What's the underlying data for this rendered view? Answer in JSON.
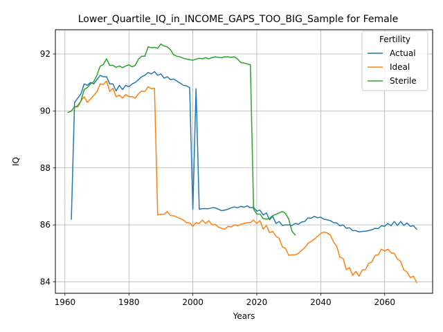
{
  "chart_data": {
    "type": "line",
    "title": "Lower_Quartile_IQ_in_INCOME_GAPS_TOO_BIG_Sample for Female",
    "xlabel": "Years",
    "ylabel": "IQ",
    "xlim": [
      1957,
      2075
    ],
    "ylim": [
      83.6,
      92.85
    ],
    "xticks": [
      1960,
      1980,
      2000,
      2020,
      2040,
      2060
    ],
    "yticks": [
      84,
      86,
      88,
      90,
      92
    ],
    "grid": true,
    "legend": {
      "title": "Fertility",
      "placement": "top-right"
    },
    "series": [
      {
        "name": "Actual",
        "color": "#1f77b4",
        "points": [
          [
            1962,
            86.2
          ],
          [
            1963,
            90.3
          ],
          [
            1964,
            90.45
          ],
          [
            1965,
            90.6
          ],
          [
            1966,
            90.95
          ],
          [
            1967,
            90.9
          ],
          [
            1968,
            91.0
          ],
          [
            1969,
            90.95
          ],
          [
            1970,
            91.1
          ],
          [
            1971,
            91.25
          ],
          [
            1972,
            91.2
          ],
          [
            1973,
            91.2
          ],
          [
            1974,
            90.95
          ],
          [
            1975,
            90.95
          ],
          [
            1976,
            90.7
          ],
          [
            1977,
            90.9
          ],
          [
            1978,
            90.75
          ],
          [
            1979,
            90.9
          ],
          [
            1980,
            90.85
          ],
          [
            1981,
            90.95
          ],
          [
            1982,
            91.0
          ],
          [
            1983,
            91.1
          ],
          [
            1984,
            91.2
          ],
          [
            1985,
            91.25
          ],
          [
            1986,
            91.35
          ],
          [
            1987,
            91.3
          ],
          [
            1988,
            91.38
          ],
          [
            1989,
            91.25
          ],
          [
            1990,
            91.3
          ],
          [
            1991,
            91.15
          ],
          [
            1992,
            91.2
          ],
          [
            1993,
            91.1
          ],
          [
            1994,
            91.12
          ],
          [
            1995,
            91.05
          ],
          [
            1996,
            90.98
          ],
          [
            1997,
            90.9
          ],
          [
            1998,
            90.88
          ],
          [
            1999,
            90.82
          ],
          [
            2000,
            86.55
          ],
          [
            2001,
            90.78
          ],
          [
            2002,
            86.55
          ],
          [
            2003,
            86.57
          ],
          [
            2004,
            86.57
          ],
          [
            2005,
            86.57
          ],
          [
            2006,
            86.6
          ],
          [
            2007,
            86.6
          ],
          [
            2008,
            86.55
          ],
          [
            2009,
            86.5
          ],
          [
            2010,
            86.52
          ],
          [
            2011,
            86.55
          ],
          [
            2012,
            86.6
          ],
          [
            2013,
            86.63
          ],
          [
            2014,
            86.6
          ],
          [
            2015,
            86.65
          ],
          [
            2016,
            86.62
          ],
          [
            2017,
            86.67
          ],
          [
            2018,
            86.6
          ],
          [
            2019,
            86.62
          ],
          [
            2020,
            86.48
          ],
          [
            2021,
            86.52
          ],
          [
            2022,
            86.35
          ],
          [
            2023,
            86.42
          ],
          [
            2024,
            86.18
          ],
          [
            2025,
            86.3
          ],
          [
            2026,
            86.05
          ],
          [
            2027,
            86.12
          ],
          [
            2028,
            85.98
          ],
          [
            2029,
            86.0
          ],
          [
            2030,
            86.0
          ],
          [
            2031,
            85.98
          ],
          [
            2032,
            86.05
          ],
          [
            2033,
            86.02
          ],
          [
            2034,
            86.1
          ],
          [
            2035,
            86.12
          ],
          [
            2036,
            86.25
          ],
          [
            2037,
            86.23
          ],
          [
            2038,
            86.3
          ],
          [
            2039,
            86.25
          ],
          [
            2040,
            86.27
          ],
          [
            2041,
            86.2
          ],
          [
            2042,
            86.18
          ],
          [
            2043,
            86.15
          ],
          [
            2044,
            86.08
          ],
          [
            2045,
            86.07
          ],
          [
            2046,
            85.97
          ],
          [
            2047,
            86.0
          ],
          [
            2048,
            85.88
          ],
          [
            2049,
            85.9
          ],
          [
            2050,
            85.8
          ],
          [
            2051,
            85.8
          ],
          [
            2052,
            85.75
          ],
          [
            2053,
            85.77
          ],
          [
            2054,
            85.78
          ],
          [
            2055,
            85.8
          ],
          [
            2056,
            85.83
          ],
          [
            2057,
            85.88
          ],
          [
            2058,
            85.87
          ],
          [
            2059,
            85.97
          ],
          [
            2060,
            85.95
          ],
          [
            2061,
            86.05
          ],
          [
            2062,
            85.97
          ],
          [
            2063,
            86.12
          ],
          [
            2064,
            85.98
          ],
          [
            2065,
            86.12
          ],
          [
            2066,
            85.98
          ],
          [
            2067,
            86.07
          ],
          [
            2068,
            85.95
          ],
          [
            2069,
            85.97
          ],
          [
            2070,
            85.85
          ]
        ]
      },
      {
        "name": "Ideal",
        "color": "#ff7f0e",
        "points": [
          [
            1963,
            90.1
          ],
          [
            1964,
            90.2
          ],
          [
            1965,
            90.35
          ],
          [
            1966,
            90.5
          ],
          [
            1967,
            90.3
          ],
          [
            1968,
            90.42
          ],
          [
            1969,
            90.55
          ],
          [
            1970,
            90.67
          ],
          [
            1971,
            90.95
          ],
          [
            1972,
            90.93
          ],
          [
            1973,
            91.05
          ],
          [
            1974,
            90.68
          ],
          [
            1975,
            90.8
          ],
          [
            1976,
            90.5
          ],
          [
            1977,
            90.55
          ],
          [
            1978,
            90.45
          ],
          [
            1979,
            90.57
          ],
          [
            1980,
            90.5
          ],
          [
            1981,
            90.5
          ],
          [
            1982,
            90.45
          ],
          [
            1983,
            90.6
          ],
          [
            1984,
            90.7
          ],
          [
            1985,
            90.68
          ],
          [
            1986,
            90.85
          ],
          [
            1987,
            90.78
          ],
          [
            1988,
            90.8
          ],
          [
            1989,
            86.35
          ],
          [
            1990,
            86.37
          ],
          [
            1991,
            86.37
          ],
          [
            1992,
            86.47
          ],
          [
            1993,
            86.33
          ],
          [
            1994,
            86.32
          ],
          [
            1995,
            86.27
          ],
          [
            1996,
            86.23
          ],
          [
            1997,
            86.17
          ],
          [
            1998,
            86.08
          ],
          [
            1999,
            86.07
          ],
          [
            2000,
            85.95
          ],
          [
            2001,
            86.08
          ],
          [
            2002,
            86.05
          ],
          [
            2003,
            86.17
          ],
          [
            2004,
            86.05
          ],
          [
            2005,
            86.15
          ],
          [
            2006,
            86.0
          ],
          [
            2007,
            86.02
          ],
          [
            2008,
            85.92
          ],
          [
            2009,
            85.88
          ],
          [
            2010,
            85.85
          ],
          [
            2011,
            85.95
          ],
          [
            2012,
            85.93
          ],
          [
            2013,
            86.0
          ],
          [
            2014,
            85.97
          ],
          [
            2015,
            86.02
          ],
          [
            2016,
            86.05
          ],
          [
            2017,
            86.08
          ],
          [
            2018,
            86.08
          ],
          [
            2019,
            86.17
          ],
          [
            2020,
            86.05
          ],
          [
            2021,
            86.15
          ],
          [
            2022,
            85.85
          ],
          [
            2023,
            85.98
          ],
          [
            2024,
            85.73
          ],
          [
            2025,
            85.77
          ],
          [
            2026,
            85.6
          ],
          [
            2027,
            85.53
          ],
          [
            2028,
            85.23
          ],
          [
            2029,
            85.17
          ],
          [
            2030,
            84.93
          ],
          [
            2031,
            84.95
          ],
          [
            2032,
            84.95
          ],
          [
            2033,
            85.0
          ],
          [
            2034,
            85.1
          ],
          [
            2035,
            85.2
          ],
          [
            2036,
            85.35
          ],
          [
            2037,
            85.42
          ],
          [
            2038,
            85.5
          ],
          [
            2039,
            85.6
          ],
          [
            2040,
            85.7
          ],
          [
            2041,
            85.75
          ],
          [
            2042,
            85.72
          ],
          [
            2043,
            85.65
          ],
          [
            2044,
            85.4
          ],
          [
            2045,
            85.25
          ],
          [
            2046,
            84.87
          ],
          [
            2047,
            84.82
          ],
          [
            2048,
            84.43
          ],
          [
            2049,
            84.5
          ],
          [
            2050,
            84.23
          ],
          [
            2051,
            84.37
          ],
          [
            2052,
            84.2
          ],
          [
            2053,
            84.42
          ],
          [
            2054,
            84.43
          ],
          [
            2055,
            84.65
          ],
          [
            2056,
            84.7
          ],
          [
            2057,
            84.93
          ],
          [
            2058,
            84.95
          ],
          [
            2059,
            85.15
          ],
          [
            2060,
            85.08
          ],
          [
            2061,
            85.15
          ],
          [
            2062,
            85.02
          ],
          [
            2063,
            85.0
          ],
          [
            2064,
            84.8
          ],
          [
            2065,
            84.72
          ],
          [
            2066,
            84.42
          ],
          [
            2067,
            84.35
          ],
          [
            2068,
            84.15
          ],
          [
            2069,
            84.2
          ],
          [
            2070,
            83.98
          ]
        ]
      },
      {
        "name": "Sterile",
        "color": "#2ca02c",
        "points": [
          [
            1961,
            89.95
          ],
          [
            1962,
            90.0
          ],
          [
            1963,
            90.15
          ],
          [
            1964,
            90.15
          ],
          [
            1965,
            90.35
          ],
          [
            1966,
            90.75
          ],
          [
            1967,
            90.82
          ],
          [
            1968,
            90.95
          ],
          [
            1969,
            91.03
          ],
          [
            1970,
            91.25
          ],
          [
            1971,
            91.57
          ],
          [
            1972,
            91.63
          ],
          [
            1973,
            91.83
          ],
          [
            1974,
            91.6
          ],
          [
            1975,
            91.6
          ],
          [
            1976,
            91.53
          ],
          [
            1977,
            91.58
          ],
          [
            1978,
            91.52
          ],
          [
            1979,
            91.58
          ],
          [
            1980,
            91.62
          ],
          [
            1981,
            91.55
          ],
          [
            1982,
            91.6
          ],
          [
            1983,
            91.82
          ],
          [
            1984,
            91.92
          ],
          [
            1985,
            91.92
          ],
          [
            1986,
            92.25
          ],
          [
            1987,
            92.22
          ],
          [
            1988,
            92.23
          ],
          [
            1989,
            92.2
          ],
          [
            1990,
            92.35
          ],
          [
            1991,
            92.28
          ],
          [
            1992,
            92.25
          ],
          [
            1993,
            92.15
          ],
          [
            1994,
            91.97
          ],
          [
            1995,
            91.92
          ],
          [
            1996,
            91.9
          ],
          [
            1997,
            91.85
          ],
          [
            1998,
            91.82
          ],
          [
            1999,
            91.8
          ],
          [
            2000,
            91.78
          ],
          [
            2001,
            91.82
          ],
          [
            2002,
            91.85
          ],
          [
            2003,
            91.83
          ],
          [
            2004,
            91.87
          ],
          [
            2005,
            91.83
          ],
          [
            2006,
            91.87
          ],
          [
            2007,
            91.9
          ],
          [
            2008,
            91.88
          ],
          [
            2009,
            91.87
          ],
          [
            2010,
            91.9
          ],
          [
            2011,
            91.9
          ],
          [
            2012,
            91.88
          ],
          [
            2013,
            91.9
          ],
          [
            2014,
            91.82
          ],
          [
            2015,
            91.7
          ],
          [
            2016,
            91.68
          ],
          [
            2017,
            91.65
          ],
          [
            2018,
            91.62
          ],
          [
            2019,
            86.55
          ],
          [
            2020,
            86.38
          ],
          [
            2021,
            86.38
          ],
          [
            2022,
            86.22
          ],
          [
            2023,
            86.2
          ],
          [
            2024,
            86.22
          ],
          [
            2025,
            86.33
          ],
          [
            2026,
            86.37
          ],
          [
            2027,
            86.42
          ],
          [
            2028,
            86.47
          ],
          [
            2029,
            86.4
          ],
          [
            2030,
            86.2
          ],
          [
            2031,
            85.78
          ],
          [
            2032,
            85.65
          ]
        ]
      }
    ]
  }
}
